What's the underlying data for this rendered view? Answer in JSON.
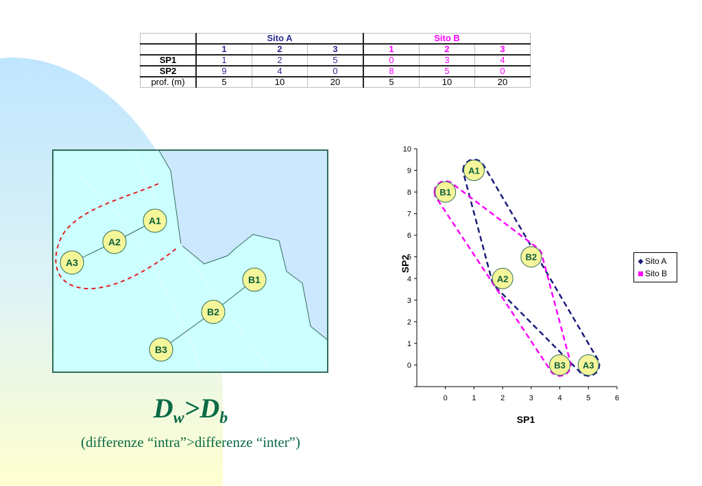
{
  "table": {
    "group_a": "Sito A",
    "group_b": "Sito B",
    "samples": [
      "1",
      "2",
      "3",
      "1",
      "2",
      "3"
    ],
    "rows": [
      {
        "label": "SP1",
        "values": [
          "1",
          "2",
          "5",
          "0",
          "3",
          "4"
        ]
      },
      {
        "label": "SP2",
        "values": [
          "9",
          "4",
          "0",
          "8",
          "5",
          "0"
        ]
      },
      {
        "label": "prof. (m)",
        "values": [
          "5",
          "10",
          "20",
          "5",
          "10",
          "20"
        ]
      }
    ]
  },
  "map": {
    "nodes": [
      {
        "label": "A1",
        "color": "#f5f59a"
      },
      {
        "label": "A2",
        "color": "#f5f59a"
      },
      {
        "label": "A3",
        "color": "#f5f59a"
      },
      {
        "label": "B1",
        "color": "#f5f59a"
      },
      {
        "label": "B2",
        "color": "#f5f59a"
      },
      {
        "label": "B3",
        "color": "#f5f59a"
      }
    ],
    "colors": {
      "land": "#ccffff",
      "sea": "#cce8ff",
      "border": "#2f6b57",
      "hull": "#e0201f",
      "node_text": "#0b5f3c"
    }
  },
  "chart_data": {
    "type": "scatter",
    "xlabel": "SP1",
    "ylabel": "SP2",
    "xlim": [
      -1,
      6
    ],
    "ylim": [
      -1,
      10
    ],
    "x_ticks": [
      "0",
      "1",
      "2",
      "3",
      "4",
      "5",
      "6"
    ],
    "y_ticks": [
      "0",
      "1",
      "2",
      "3",
      "4",
      "5",
      "6",
      "7",
      "8",
      "9",
      "10"
    ],
    "legend_position": "right",
    "series": [
      {
        "name": "Sito A",
        "color": "#1a1a7a",
        "points": [
          {
            "label": "A1",
            "x": 1,
            "y": 9
          },
          {
            "label": "A2",
            "x": 2,
            "y": 4
          },
          {
            "label": "A3",
            "x": 5,
            "y": 0
          }
        ]
      },
      {
        "name": "Sito B",
        "color": "#ff00ff",
        "points": [
          {
            "label": "B1",
            "x": 0,
            "y": 8
          },
          {
            "label": "B2",
            "x": 3,
            "y": 5
          },
          {
            "label": "B3",
            "x": 4,
            "y": 0
          }
        ]
      }
    ]
  },
  "formula": {
    "d": "D",
    "w": "w",
    "gt": ">",
    "b": "b"
  },
  "caption": "(differenze “intra”>differenze “inter”)"
}
